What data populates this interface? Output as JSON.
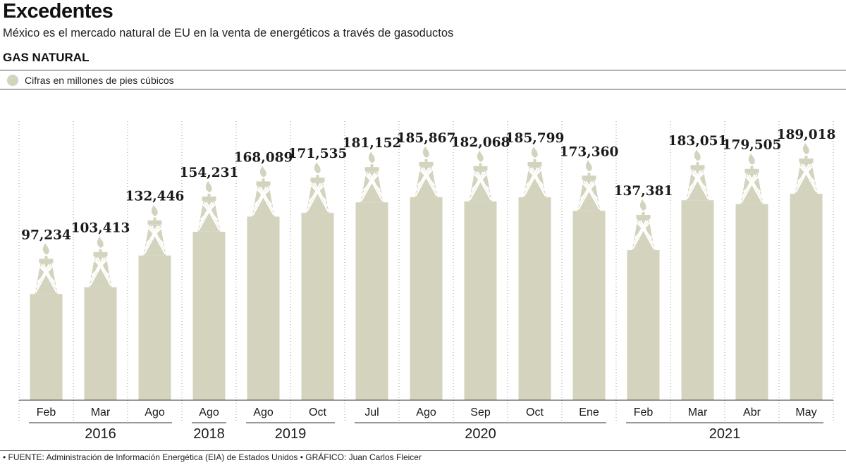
{
  "header": {
    "title": "Excedentes",
    "subtitle": "México es el mercado natural de EU en la venta de energéticos a través de gasoductos",
    "section": "GAS NATURAL",
    "legend": "Cifras en millones de pies cúbicos"
  },
  "footer": {
    "source": "• FUENTE: Administración de Información Energética (EIA) de Estados Unidos • GRÁFICO: Juan Carlos Fleicer"
  },
  "colors": {
    "bar": "#d4d3bd",
    "text": "#1a1a1a",
    "grid": "#9a9a9a"
  },
  "chart_data": {
    "type": "bar",
    "categories": [
      "Feb",
      "Mar",
      "Ago",
      "Ago",
      "Ago",
      "Oct",
      "Jul",
      "Ago",
      "Sep",
      "Oct",
      "Ene",
      "Feb",
      "Mar",
      "Abr",
      "May"
    ],
    "values": [
      97234,
      103413,
      132446,
      154231,
      168089,
      171535,
      181152,
      185867,
      182068,
      185799,
      173360,
      137381,
      183051,
      179505,
      189018
    ],
    "value_labels": [
      "97,234",
      "103,413",
      "132,446",
      "154,231",
      "168,089",
      "171,535",
      "181,152",
      "185,867",
      "182,068",
      "185,799",
      "173,360",
      "137,381",
      "183,051",
      "179,505",
      "189,018"
    ],
    "year_groups": [
      {
        "year": "2016",
        "start": 0,
        "end": 2
      },
      {
        "year": "2018",
        "start": 3,
        "end": 3
      },
      {
        "year": "2019",
        "start": 4,
        "end": 5
      },
      {
        "year": "2020",
        "start": 6,
        "end": 10
      },
      {
        "year": "2021",
        "start": 11,
        "end": 14
      }
    ],
    "legend": "Cifras en millones de pies cúbicos",
    "grid": "vertical dotted separators"
  }
}
